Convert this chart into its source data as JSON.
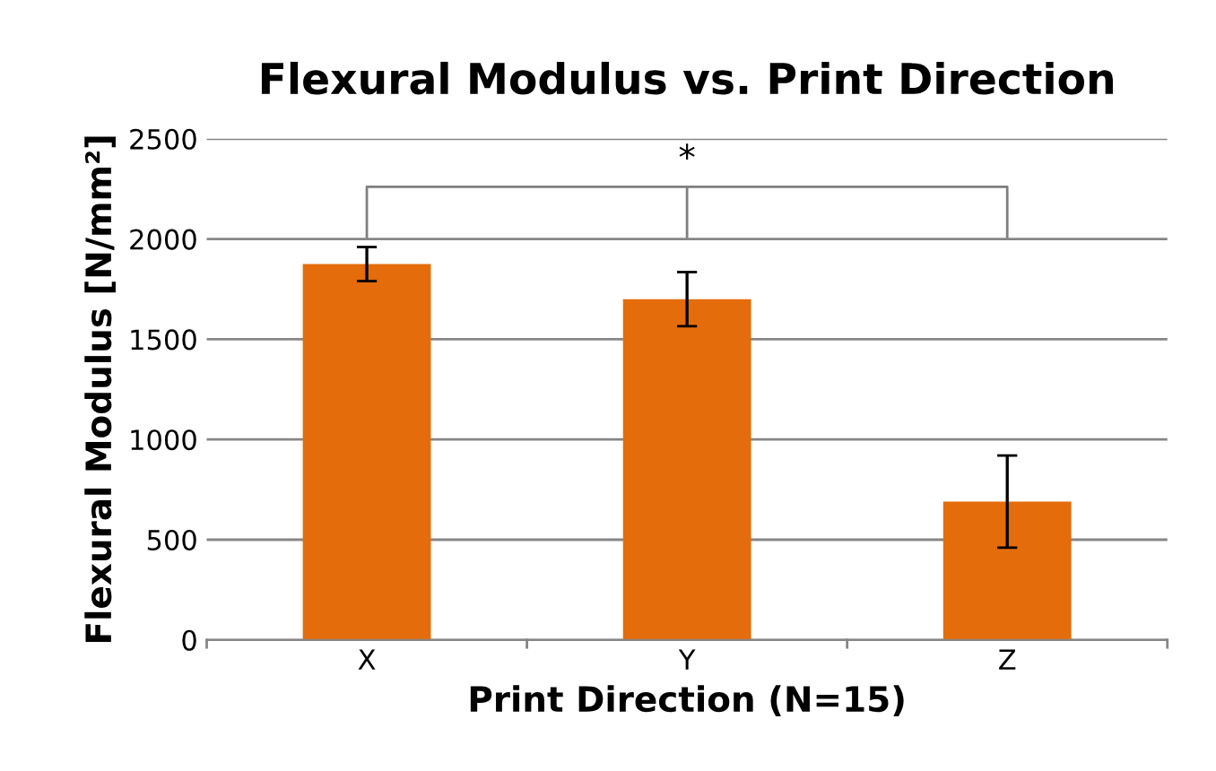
{
  "chart_data": {
    "type": "bar",
    "title": "Flexural Modulus vs. Print Direction",
    "xlabel": "Print Direction (N=15)",
    "ylabel": "Flexural Modulus [N/mm²]",
    "categories": [
      "X",
      "Y",
      "Z"
    ],
    "values": [
      1875,
      1700,
      690
    ],
    "errors": [
      85,
      135,
      230
    ],
    "color": "#e46c0a",
    "ylim": [
      0,
      2500
    ],
    "yticks": [
      0,
      500,
      1000,
      1500,
      2000,
      2500
    ],
    "grid": "y",
    "legend": false,
    "annotations": [
      "*"
    ]
  }
}
